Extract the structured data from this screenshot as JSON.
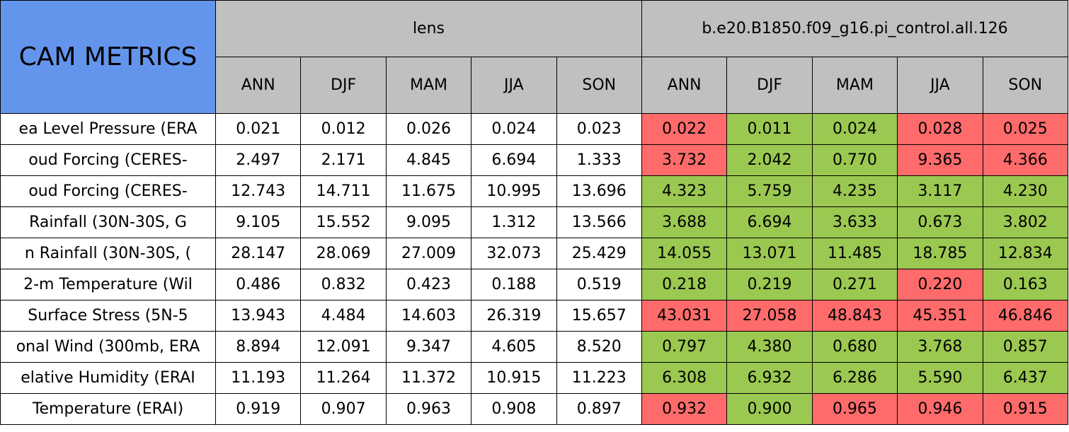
{
  "title": "CAM METRICS",
  "groups": [
    {
      "name": "lens",
      "seasons": [
        "ANN",
        "DJF",
        "MAM",
        "JJA",
        "SON"
      ]
    },
    {
      "name": "b.e20.B1850.f09_g16.pi_control.all.126",
      "seasons": [
        "ANN",
        "DJF",
        "MAM",
        "JJA",
        "SON"
      ]
    }
  ],
  "rows": [
    {
      "label": "ea Level Pressure (ERA",
      "values": [
        "0.021",
        "0.012",
        "0.026",
        "0.024",
        "0.023",
        "0.022",
        "0.011",
        "0.024",
        "0.028",
        "0.025"
      ],
      "colors": [
        "#ffffff",
        "#ffffff",
        "#ffffff",
        "#ffffff",
        "#ffffff",
        "#ff6b6b",
        "#9bc850",
        "#9bc850",
        "#ff6b6b",
        "#ff6b6b"
      ]
    },
    {
      "label": "oud Forcing (CERES-",
      "values": [
        "2.497",
        "2.171",
        "4.845",
        "6.694",
        "1.333",
        "3.732",
        "2.042",
        "0.770",
        "9.365",
        "4.366"
      ],
      "colors": [
        "#ffffff",
        "#ffffff",
        "#ffffff",
        "#ffffff",
        "#ffffff",
        "#ff6b6b",
        "#9bc850",
        "#9bc850",
        "#ff6b6b",
        "#ff6b6b"
      ]
    },
    {
      "label": "oud Forcing (CERES-",
      "values": [
        "12.743",
        "14.711",
        "11.675",
        "10.995",
        "13.696",
        "4.323",
        "5.759",
        "4.235",
        "3.117",
        "4.230"
      ],
      "colors": [
        "#ffffff",
        "#ffffff",
        "#ffffff",
        "#ffffff",
        "#ffffff",
        "#9bc850",
        "#9bc850",
        "#9bc850",
        "#9bc850",
        "#9bc850"
      ]
    },
    {
      "label": "Rainfall (30N-30S, G",
      "values": [
        "9.105",
        "15.552",
        "9.095",
        "1.312",
        "13.566",
        "3.688",
        "6.694",
        "3.633",
        "0.673",
        "3.802"
      ],
      "colors": [
        "#ffffff",
        "#ffffff",
        "#ffffff",
        "#ffffff",
        "#ffffff",
        "#9bc850",
        "#9bc850",
        "#9bc850",
        "#9bc850",
        "#9bc850"
      ]
    },
    {
      "label": "n Rainfall (30N-30S, (",
      "values": [
        "28.147",
        "28.069",
        "27.009",
        "32.073",
        "25.429",
        "14.055",
        "13.071",
        "11.485",
        "18.785",
        "12.834"
      ],
      "colors": [
        "#ffffff",
        "#ffffff",
        "#ffffff",
        "#ffffff",
        "#ffffff",
        "#9bc850",
        "#9bc850",
        "#9bc850",
        "#9bc850",
        "#9bc850"
      ]
    },
    {
      "label": "2-m Temperature (Wil",
      "values": [
        "0.486",
        "0.832",
        "0.423",
        "0.188",
        "0.519",
        "0.218",
        "0.219",
        "0.271",
        "0.220",
        "0.163"
      ],
      "colors": [
        "#ffffff",
        "#ffffff",
        "#ffffff",
        "#ffffff",
        "#ffffff",
        "#9bc850",
        "#9bc850",
        "#9bc850",
        "#ff6b6b",
        "#9bc850"
      ]
    },
    {
      "label": "Surface Stress (5N-5",
      "values": [
        "13.943",
        "4.484",
        "14.603",
        "26.319",
        "15.657",
        "43.031",
        "27.058",
        "48.843",
        "45.351",
        "46.846"
      ],
      "colors": [
        "#ffffff",
        "#ffffff",
        "#ffffff",
        "#ffffff",
        "#ffffff",
        "#ff6b6b",
        "#ff6b6b",
        "#ff6b6b",
        "#ff6b6b",
        "#ff6b6b"
      ]
    },
    {
      "label": "onal Wind (300mb, ERA",
      "values": [
        "8.894",
        "12.091",
        "9.347",
        "4.605",
        "8.520",
        "0.797",
        "4.380",
        "0.680",
        "3.768",
        "0.857"
      ],
      "colors": [
        "#ffffff",
        "#ffffff",
        "#ffffff",
        "#ffffff",
        "#ffffff",
        "#9bc850",
        "#9bc850",
        "#9bc850",
        "#9bc850",
        "#9bc850"
      ]
    },
    {
      "label": "elative Humidity (ERAI",
      "values": [
        "11.193",
        "11.264",
        "11.372",
        "10.915",
        "11.223",
        "6.308",
        "6.932",
        "6.286",
        "5.590",
        "6.437"
      ],
      "colors": [
        "#ffffff",
        "#ffffff",
        "#ffffff",
        "#ffffff",
        "#ffffff",
        "#9bc850",
        "#9bc850",
        "#9bc850",
        "#9bc850",
        "#9bc850"
      ]
    },
    {
      "label": "Temperature (ERAI)",
      "values": [
        "0.919",
        "0.907",
        "0.963",
        "0.908",
        "0.897",
        "0.932",
        "0.900",
        "0.965",
        "0.946",
        "0.915"
      ],
      "colors": [
        "#ffffff",
        "#ffffff",
        "#ffffff",
        "#ffffff",
        "#ffffff",
        "#ff6b6b",
        "#9bc850",
        "#ff6b6b",
        "#ff6b6b",
        "#ff6b6b"
      ]
    }
  ]
}
